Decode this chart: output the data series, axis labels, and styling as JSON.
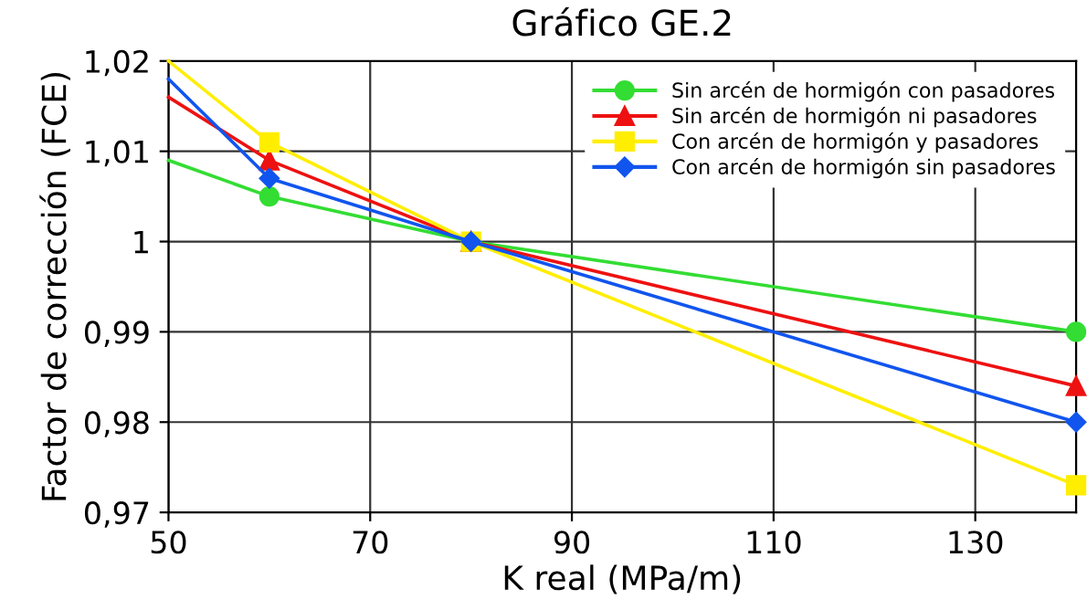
{
  "chart_data": {
    "type": "line",
    "title": "Gráfico GE.2",
    "xlabel": "K real (MPa/m)",
    "ylabel": "Factor de corrección (FCE)",
    "xlim": [
      50,
      140
    ],
    "xticks": [
      50,
      70,
      90,
      110,
      130
    ],
    "ylim": [
      0.97,
      1.02
    ],
    "yticks": [
      {
        "value": 0.97,
        "label": "0,97"
      },
      {
        "value": 0.98,
        "label": "0,98"
      },
      {
        "value": 0.99,
        "label": "0,99"
      },
      {
        "value": 1,
        "label": "1"
      },
      {
        "value": 1.01,
        "label": "1,01"
      },
      {
        "value": 1.02,
        "label": "1,02"
      }
    ],
    "grid": true,
    "legend": "top right",
    "line_style": "solid",
    "series": [
      {
        "name": "Sin arcén de hormigón con pasadores",
        "color": "#33dd33",
        "marker": "circle",
        "x": [
          50,
          60,
          80,
          140
        ],
        "values": [
          1.009,
          1.005,
          1.0,
          0.99
        ]
      },
      {
        "name": "Sin arcén de hormigón ni pasadores",
        "color": "#ee1111",
        "marker": "triangle",
        "x": [
          50,
          60,
          80,
          140
        ],
        "values": [
          1.016,
          1.009,
          1.0,
          0.984
        ]
      },
      {
        "name": "Con arcén de hormigón y pasadores",
        "color": "#ffee00",
        "marker": "square",
        "x": [
          50,
          60,
          80,
          140
        ],
        "values": [
          1.02,
          1.011,
          1.0,
          0.973
        ]
      },
      {
        "name": "Con arcén de hormigón sin pasadores",
        "color": "#1155ee",
        "marker": "diamond",
        "x": [
          50,
          60,
          80,
          140
        ],
        "values": [
          1.018,
          1.007,
          1.0,
          0.98
        ]
      }
    ]
  }
}
